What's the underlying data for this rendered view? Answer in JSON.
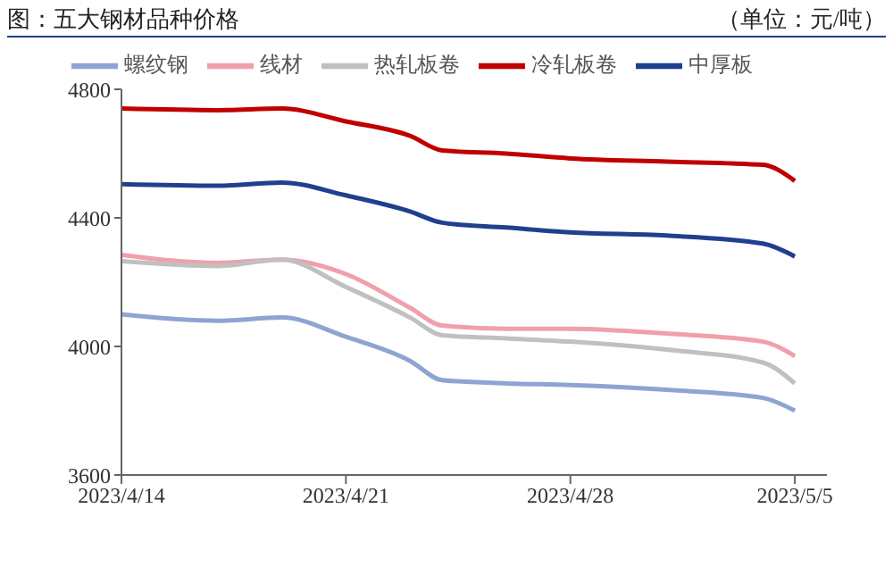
{
  "chart_data": {
    "type": "line",
    "title": "图：五大钢材品种价格",
    "ylabel": "（单位：元/吨）",
    "x": [
      "2023-04-14",
      "2023-04-17",
      "2023-04-19",
      "2023-04-21",
      "2023-04-23",
      "2023-04-24",
      "2023-04-26",
      "2023-04-28",
      "2023-05-01",
      "2023-05-04",
      "2023-05-05"
    ],
    "series": [
      {
        "name": "螺纹钢",
        "color": "#8ea4d2",
        "values": [
          4100,
          4080,
          4090,
          4030,
          3955,
          3895,
          3885,
          3880,
          3865,
          3840,
          3800
        ]
      },
      {
        "name": "线材",
        "color": "#f0a0aa",
        "values": [
          4285,
          4260,
          4270,
          4225,
          4120,
          4065,
          4055,
          4055,
          4040,
          4015,
          3970
        ]
      },
      {
        "name": "热轧板卷",
        "color": "#c0c0c0",
        "values": [
          4265,
          4250,
          4270,
          4185,
          4090,
          4035,
          4025,
          4015,
          3990,
          3950,
          3885
        ]
      },
      {
        "name": "冷轧板卷",
        "color": "#c00000",
        "values": [
          4740,
          4735,
          4740,
          4700,
          4655,
          4610,
          4600,
          4585,
          4575,
          4565,
          4515
        ]
      },
      {
        "name": "中厚板",
        "color": "#1f3f8f",
        "values": [
          4505,
          4500,
          4510,
          4470,
          4420,
          4385,
          4370,
          4355,
          4345,
          4320,
          4280
        ]
      }
    ],
    "xlim": [
      "2023-04-14",
      "2023-05-06"
    ],
    "xticks": [
      {
        "value": "2023-04-14",
        "label": "2023/4/14"
      },
      {
        "value": "2023-04-21",
        "label": "2023/4/21"
      },
      {
        "value": "2023-04-28",
        "label": "2023/4/28"
      },
      {
        "value": "2023-05-05",
        "label": "2023/5/5"
      }
    ],
    "ylim": [
      3600,
      4800
    ],
    "yticks": [
      3600,
      4000,
      4400,
      4800
    ],
    "grid": false,
    "legend": "top",
    "marker": "none",
    "line_style": "solid"
  }
}
